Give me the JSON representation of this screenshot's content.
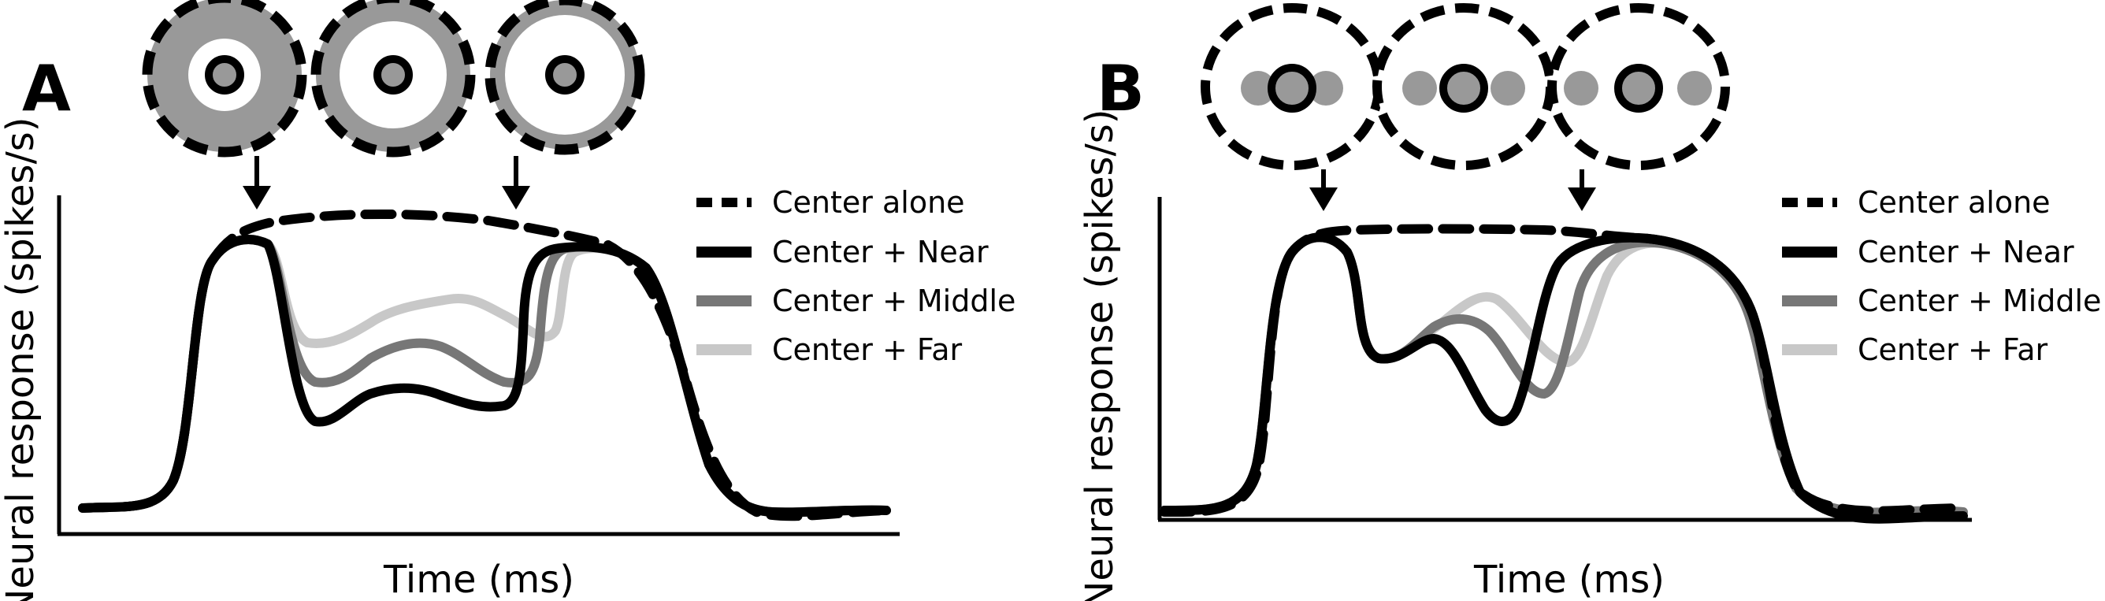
{
  "panels": [
    {
      "letter": "A",
      "xlabel": "Time (ms)",
      "ylabel": "Neural response (spikes/s)",
      "legend": [
        "Center alone",
        "Center + Near",
        "Center + Middle",
        "Center + Far"
      ]
    },
    {
      "letter": "B",
      "xlabel": "Time (ms)",
      "ylabel": "Neural response (spikes/s)",
      "legend": [
        "Center alone",
        "Center + Near",
        "Center + Middle",
        "Center + Far"
      ]
    }
  ],
  "colors": {
    "center_alone": "#000000",
    "near": "#000000",
    "middle": "#777777",
    "far": "#c8c8c8",
    "surround_fill": "#999999"
  },
  "icons": [
    "annular-surround-stimulus-icon",
    "flanker-stimulus-icon",
    "down-arrow-icon"
  ]
}
